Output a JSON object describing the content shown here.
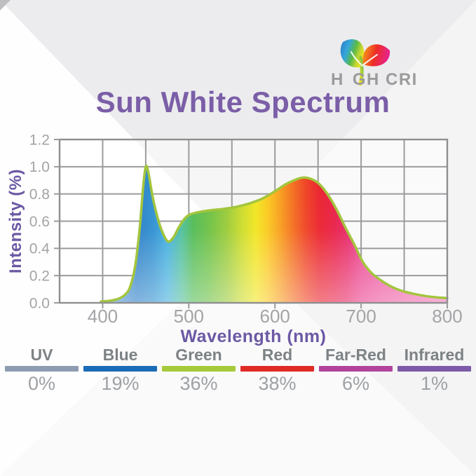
{
  "logo": {
    "name": "HIGH CRI",
    "text_before_trunk": "H",
    "text_after_trunk": "GH CRI",
    "icon": "plant-leaves-icon",
    "text_color": "#9b9b9b"
  },
  "title": {
    "text": "Sun White Spectrum",
    "color": "#7b5ea7"
  },
  "chart_data": {
    "type": "area",
    "title": "Sun White Spectrum",
    "xlabel": "Wavelength (nm)",
    "ylabel": "Intensity (%)",
    "xlim": [
      350,
      800
    ],
    "ylim": [
      0,
      1.2
    ],
    "x_tick_labels": [
      "400",
      "500",
      "600",
      "700",
      "800"
    ],
    "x_tick_values": [
      400,
      500,
      600,
      700,
      800
    ],
    "y_tick_labels": [
      "0.0",
      "0.2",
      "0.4",
      "0.6",
      "0.8",
      "1.0",
      "1.2"
    ],
    "y_tick_values": [
      0,
      0.2,
      0.4,
      0.6,
      0.8,
      1.0,
      1.2
    ],
    "x_grid_step": 50,
    "grid": true,
    "legend_position": "bottom",
    "outline_color": "#a3c53d",
    "grid_color": "#9b9b9d",
    "border_color": "#8f8f91",
    "tick_text_color": "#a4a4a7",
    "axis_title_color": "#6c59a4",
    "points": [
      [
        398,
        0.01
      ],
      [
        408,
        0.015
      ],
      [
        418,
        0.03
      ],
      [
        426,
        0.06
      ],
      [
        432,
        0.12
      ],
      [
        438,
        0.28
      ],
      [
        443,
        0.55
      ],
      [
        447,
        0.85
      ],
      [
        450,
        1.0
      ],
      [
        453,
        0.96
      ],
      [
        458,
        0.78
      ],
      [
        464,
        0.62
      ],
      [
        470,
        0.51
      ],
      [
        476,
        0.45
      ],
      [
        482,
        0.48
      ],
      [
        488,
        0.55
      ],
      [
        494,
        0.61
      ],
      [
        500,
        0.645
      ],
      [
        510,
        0.665
      ],
      [
        525,
        0.68
      ],
      [
        540,
        0.69
      ],
      [
        555,
        0.705
      ],
      [
        570,
        0.73
      ],
      [
        585,
        0.765
      ],
      [
        600,
        0.82
      ],
      [
        612,
        0.87
      ],
      [
        622,
        0.9
      ],
      [
        632,
        0.92
      ],
      [
        642,
        0.91
      ],
      [
        652,
        0.87
      ],
      [
        662,
        0.79
      ],
      [
        672,
        0.68
      ],
      [
        682,
        0.55
      ],
      [
        692,
        0.43
      ],
      [
        702,
        0.3
      ],
      [
        712,
        0.22
      ],
      [
        722,
        0.17
      ],
      [
        732,
        0.13
      ],
      [
        742,
        0.1
      ],
      [
        752,
        0.08
      ],
      [
        762,
        0.065
      ],
      [
        775,
        0.05
      ],
      [
        788,
        0.04
      ],
      [
        800,
        0.035
      ]
    ],
    "gradient_stops": [
      [
        398,
        "#6ea3dc"
      ],
      [
        440,
        "#2b7ec7"
      ],
      [
        458,
        "#2e8fd0"
      ],
      [
        475,
        "#3fadde"
      ],
      [
        492,
        "#4fbf9a"
      ],
      [
        505,
        "#52bb54"
      ],
      [
        525,
        "#6fc142"
      ],
      [
        545,
        "#9ccb37"
      ],
      [
        562,
        "#cddc2a"
      ],
      [
        578,
        "#f2e51e"
      ],
      [
        592,
        "#fbc71d"
      ],
      [
        606,
        "#f89e1c"
      ],
      [
        620,
        "#f4711e"
      ],
      [
        636,
        "#ef4123"
      ],
      [
        652,
        "#ea212d"
      ],
      [
        668,
        "#e81e45"
      ],
      [
        684,
        "#e72566"
      ],
      [
        700,
        "#ea3d8d"
      ],
      [
        725,
        "#ee549f"
      ],
      [
        760,
        "#f168ac"
      ],
      [
        800,
        "#f47ab8"
      ]
    ]
  },
  "legend": {
    "items": [
      {
        "label": "UV",
        "value": "0%",
        "color": "#8d9cb1"
      },
      {
        "label": "Blue",
        "value": "19%",
        "color": "#1b6cb7"
      },
      {
        "label": "Green",
        "value": "36%",
        "color": "#a6ca3a"
      },
      {
        "label": "Red",
        "value": "38%",
        "color": "#e02a26"
      },
      {
        "label": "Far-Red",
        "value": "6%",
        "color": "#b2439c"
      },
      {
        "label": "Infrared",
        "value": "1%",
        "color": "#7d5aa7"
      }
    ]
  }
}
